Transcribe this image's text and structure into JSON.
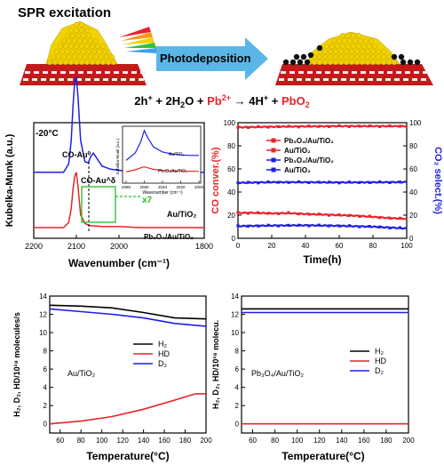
{
  "header": {
    "spr_label": "SPR excitation",
    "arrow_label": "Photodeposition",
    "equation_parts": [
      "2h",
      "+",
      " + 2H",
      "2",
      "O + ",
      "Pb",
      "2+",
      " → 4H",
      "+",
      " + ",
      "PbO",
      "2"
    ]
  },
  "colors": {
    "black": "#000000",
    "red": "#e8242a",
    "blue": "#1f1fe6",
    "green": "#22c022",
    "gold": "#f2d200",
    "arrow": "#5bb6e8",
    "substrate_red": "#c41a1a",
    "substrate_white": "#eeeeee"
  },
  "chart_data": [
    {
      "id": "ir",
      "type": "line",
      "temp_label": "-20°C",
      "xlabel": "Wavenumber (cm⁻¹)",
      "ylabel": "Kubelka-Munk (a.u.)",
      "xlim": [
        2200,
        1800
      ],
      "x_ticks": [
        "2200",
        "2100",
        "2000",
        "1800"
      ],
      "peak_labels": [
        "CO-Au⁰",
        "CO-Au^δ"
      ],
      "zoom_label": "x7",
      "series": [
        {
          "name": "Au/TiO₂",
          "color": "blue",
          "offset": 0.62,
          "x": [
            2200,
            2130,
            2118,
            2112,
            2108,
            2104,
            2100,
            2096,
            2090,
            2080,
            2072,
            2066,
            2060,
            2050,
            2040,
            2020,
            2000,
            1980,
            1950,
            1900,
            1850,
            1800
          ],
          "y": [
            0,
            0.0,
            0.08,
            0.3,
            0.62,
            0.85,
            0.9,
            0.7,
            0.3,
            0.1,
            0.09,
            0.15,
            0.18,
            0.12,
            0.06,
            0.03,
            0.02,
            0.01,
            0.01,
            0.0,
            0.0,
            0.0
          ]
        },
        {
          "name": "Pb₃O₄/Au/TiO₂",
          "color": "red",
          "offset": 0.1,
          "x": [
            2200,
            2130,
            2118,
            2112,
            2108,
            2104,
            2100,
            2096,
            2090,
            2080,
            2070,
            2040,
            2000,
            1950,
            1900,
            1850,
            1800
          ],
          "y": [
            0,
            0.0,
            0.05,
            0.18,
            0.36,
            0.48,
            0.52,
            0.38,
            0.12,
            0.04,
            0.02,
            0.01,
            0.01,
            0.0,
            0.0,
            0.0,
            0.0
          ]
        }
      ],
      "inset": {
        "ylabel": "Kubelka-Munk (a.u.)",
        "xlabel": "Wavenumber (cm⁻¹)",
        "x_ticks": [
          "2080",
          "2060",
          "2040",
          "2020",
          "2000"
        ],
        "labels": [
          "Au/TiO₂",
          "Pb₃O₄/Au/TiO₂"
        ]
      }
    },
    {
      "id": "conv",
      "type": "line",
      "xlabel": "Time(h)",
      "ylabel_left": "CO conver.(%)",
      "ylabel_right": "CO₂ select.(%)",
      "xlim": [
        0,
        100
      ],
      "ylim": [
        0,
        100
      ],
      "x_ticks": [
        "0",
        "20",
        "40",
        "60",
        "80",
        "100"
      ],
      "y_ticks": [
        "0",
        "20",
        "40",
        "60",
        "80",
        "100"
      ],
      "legend": [
        "Pb₃O₄/Au/TiO₂",
        "Au/TiO₂",
        "Pb₃O₄/Au/TiO₂",
        "Au/TiO₂"
      ],
      "series": [
        {
          "name": "Pb₃O₄/Au/TiO₂",
          "axis": "left",
          "color": "red",
          "x": [
            0,
            20,
            40,
            60,
            80,
            100
          ],
          "y": [
            96,
            96.5,
            96.8,
            97,
            97,
            97
          ]
        },
        {
          "name": "Au/TiO₂",
          "axis": "left",
          "color": "red",
          "x": [
            0,
            10,
            20,
            30,
            40,
            50,
            60,
            70,
            80,
            90,
            100
          ],
          "y": [
            22,
            22,
            21.5,
            21.8,
            21,
            20.5,
            20,
            19.5,
            18.5,
            17.5,
            16.8
          ]
        },
        {
          "name": "Pb₃O₄/Au/TiO₂",
          "axis": "right",
          "color": "blue",
          "x": [
            0,
            20,
            40,
            60,
            80,
            100
          ],
          "y": [
            10.5,
            11,
            11.2,
            10.8,
            10,
            8.5
          ]
        },
        {
          "name": "Au/TiO₂",
          "axis": "right",
          "color": "blue",
          "x": [
            0,
            20,
            40,
            60,
            80,
            100
          ],
          "y": [
            48,
            48.5,
            48.5,
            48.3,
            48.4,
            48.6
          ]
        }
      ]
    },
    {
      "id": "hd_au",
      "type": "line",
      "xlabel": "Temperature(°C)",
      "ylabel": "H₂, D₂, HD/10¹⁸ molecules/s",
      "sample_label": "Au/TiO₂",
      "xlim": [
        50,
        200
      ],
      "ylim": [
        -1,
        14
      ],
      "x_ticks": [
        "60",
        "80",
        "100",
        "120",
        "140",
        "160",
        "180",
        "200"
      ],
      "y_ticks": [
        "0",
        "2",
        "4",
        "6",
        "8",
        "10",
        "12",
        "14"
      ],
      "series": [
        {
          "name": "H₂",
          "color": "black",
          "x": [
            50,
            80,
            110,
            140,
            170,
            200
          ],
          "y": [
            13,
            12.9,
            12.7,
            12.2,
            11.6,
            11.5
          ]
        },
        {
          "name": "HD",
          "color": "red",
          "x": [
            50,
            80,
            110,
            140,
            170,
            190,
            200
          ],
          "y": [
            0,
            0.3,
            0.8,
            1.6,
            2.6,
            3.3,
            3.3
          ]
        },
        {
          "name": "D₂",
          "color": "blue",
          "x": [
            50,
            80,
            110,
            140,
            170,
            200
          ],
          "y": [
            12.6,
            12.3,
            12,
            11.6,
            11,
            10.7
          ]
        }
      ]
    },
    {
      "id": "hd_pb",
      "type": "line",
      "xlabel": "Temperature(°C)",
      "ylabel": "H₂, D₂, HD/10¹⁸ molecu.",
      "sample_label": "Pb₃O₄/Au/TiO₂",
      "xlim": [
        50,
        200
      ],
      "ylim": [
        -1,
        14
      ],
      "x_ticks": [
        "60",
        "80",
        "100",
        "120",
        "140",
        "160",
        "180",
        "200"
      ],
      "y_ticks": [
        "0",
        "2",
        "4",
        "6",
        "8",
        "10",
        "12",
        "14"
      ],
      "series": [
        {
          "name": "H₂",
          "color": "black",
          "x": [
            50,
            100,
            150,
            200
          ],
          "y": [
            12.6,
            12.6,
            12.6,
            12.6
          ]
        },
        {
          "name": "HD",
          "color": "red",
          "x": [
            50,
            100,
            150,
            200
          ],
          "y": [
            0,
            0,
            0,
            0
          ]
        },
        {
          "name": "D₂",
          "color": "blue",
          "x": [
            50,
            100,
            150,
            200
          ],
          "y": [
            12.2,
            12.2,
            12.2,
            12.2
          ]
        }
      ]
    }
  ]
}
